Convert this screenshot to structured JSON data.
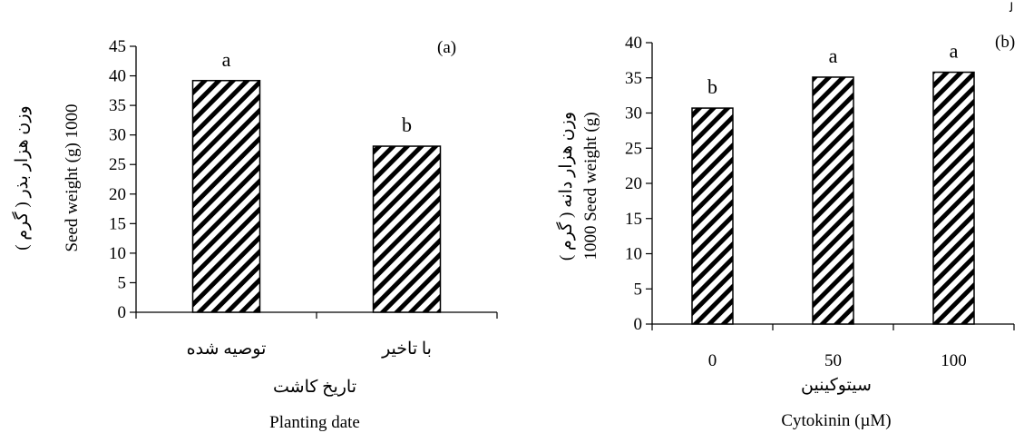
{
  "corner_mark": "ﻟ",
  "chart_data": [
    {
      "type": "bar",
      "panel_label": "(a)",
      "categories": [
        "توصیه شده",
        "با تاخیر"
      ],
      "values": [
        39.2,
        28.1
      ],
      "bar_labels": [
        "a",
        "b"
      ],
      "ylim": [
        0,
        45
      ],
      "yticks": [
        0,
        5,
        10,
        15,
        20,
        25,
        30,
        35,
        40,
        45
      ],
      "ylabel_fa": "وزن هزار بذر ( گرم )",
      "ylabel_en": "Seed weight (g) 1000",
      "xlabel_fa": "تاریخ کاشت",
      "xlabel_en": "Planting date",
      "grid": false,
      "bar_fill": "hatched"
    },
    {
      "type": "bar",
      "panel_label": "(b)",
      "categories": [
        "0",
        "50",
        "100"
      ],
      "values": [
        30.7,
        35.1,
        35.8
      ],
      "bar_labels": [
        "b",
        "a",
        "a"
      ],
      "ylim": [
        0,
        40
      ],
      "yticks": [
        0,
        5,
        10,
        15,
        20,
        25,
        30,
        35,
        40
      ],
      "ylabel_fa": "وزن هزار دانه ( گرم )",
      "ylabel_en": "1000 Seed weight (g)",
      "xlabel_fa": "سیتوکینین",
      "xlabel_en": "Cytokinin (µM)",
      "grid": false,
      "bar_fill": "hatched"
    }
  ]
}
